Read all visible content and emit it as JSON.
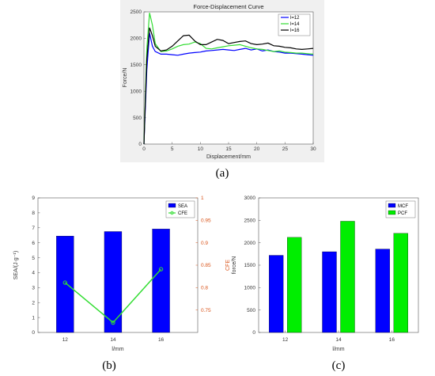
{
  "colors": {
    "blue": "#0000ff",
    "green": "#00ee00",
    "green_line": "#33dd33",
    "black": "#000000",
    "orange_axis": "#d95319",
    "panel_bg": "#f0f0f0",
    "axes_bg": "#ffffff"
  },
  "panel_labels": [
    "(a)",
    "(b)",
    "(c)"
  ],
  "chart_data": [
    {
      "type": "line",
      "title": "Force-Displacement Curve",
      "xlabel": "Displacement/mm",
      "ylabel": "Force/N",
      "xlim": [
        0,
        30
      ],
      "ylim": [
        0,
        2500
      ],
      "xticks": [
        "0",
        "5",
        "10",
        "15",
        "20",
        "25",
        "30"
      ],
      "yticks": [
        "0",
        "500",
        "1000",
        "1500",
        "2000",
        "2500"
      ],
      "legend": "top-right",
      "series": [
        {
          "name": "l=12",
          "x": [
            0,
            0.5,
            1.0,
            1.5,
            2,
            3,
            4,
            5,
            6,
            7,
            8,
            9,
            10,
            11,
            12,
            13,
            14,
            15,
            16,
            17,
            18,
            19,
            20,
            21,
            22,
            23,
            24,
            25,
            26,
            27,
            28,
            29,
            30
          ],
          "y": [
            0,
            1400,
            2100,
            1850,
            1750,
            1700,
            1700,
            1690,
            1680,
            1700,
            1720,
            1730,
            1740,
            1760,
            1770,
            1780,
            1790,
            1780,
            1770,
            1790,
            1810,
            1780,
            1800,
            1760,
            1780,
            1750,
            1740,
            1720,
            1720,
            1710,
            1700,
            1690,
            1680
          ]
        },
        {
          "name": "l=14",
          "x": [
            0,
            0.5,
            1.0,
            1.5,
            2,
            3,
            4,
            5,
            6,
            7,
            8,
            9,
            10,
            11,
            12,
            13,
            14,
            15,
            16,
            17,
            18,
            19,
            20,
            21,
            22,
            23,
            24,
            25,
            26,
            27,
            28,
            29,
            30
          ],
          "y": [
            0,
            1800,
            2480,
            2250,
            1900,
            1750,
            1760,
            1800,
            1850,
            1880,
            1890,
            1930,
            1900,
            1810,
            1800,
            1820,
            1840,
            1860,
            1870,
            1880,
            1850,
            1820,
            1800,
            1790,
            1770,
            1750,
            1760,
            1740,
            1730,
            1720,
            1720,
            1710,
            1700
          ]
        },
        {
          "name": "l=16",
          "x": [
            0,
            0.5,
            1.0,
            1.5,
            2,
            3,
            4,
            5,
            6,
            7,
            8,
            9,
            10,
            11,
            12,
            13,
            14,
            15,
            16,
            17,
            18,
            19,
            20,
            21,
            22,
            23,
            24,
            25,
            26,
            27,
            28,
            29,
            30
          ],
          "y": [
            0,
            1600,
            2200,
            2050,
            1850,
            1760,
            1780,
            1850,
            1950,
            2050,
            2060,
            1950,
            1880,
            1880,
            1930,
            1980,
            1960,
            1900,
            1920,
            1940,
            1950,
            1900,
            1880,
            1890,
            1910,
            1860,
            1850,
            1830,
            1820,
            1800,
            1790,
            1800,
            1810
          ]
        }
      ]
    },
    {
      "type": "bar",
      "xlabel": "l/mm",
      "ylabel": "SEA/(J·g⁻¹)",
      "y2label": "CFE",
      "categories": [
        "12",
        "14",
        "16"
      ],
      "ylim": [
        0,
        9
      ],
      "yticks": [
        "0",
        "1",
        "2",
        "3",
        "4",
        "5",
        "6",
        "7",
        "8",
        "9"
      ],
      "y2lim": [
        0.7,
        1.0
      ],
      "y2ticks": [
        "0.75",
        "0.8",
        "0.85",
        "0.9",
        "0.95",
        "1"
      ],
      "legend": "top-right",
      "series": [
        {
          "name": "SEA",
          "type": "bar",
          "axis": "left",
          "values": [
            6.45,
            6.75,
            6.92
          ]
        },
        {
          "name": "CFE",
          "type": "line",
          "axis": "right",
          "values": [
            0.811,
            0.722,
            0.841
          ]
        }
      ]
    },
    {
      "type": "bar",
      "xlabel": "l/mm",
      "ylabel": "force/N",
      "categories": [
        "12",
        "14",
        "16"
      ],
      "ylim": [
        0,
        3000
      ],
      "yticks": [
        "0",
        "500",
        "1000",
        "1500",
        "2000",
        "2500",
        "3000"
      ],
      "legend": "top-right",
      "series": [
        {
          "name": "MCF",
          "values": [
            1720,
            1800,
            1860
          ]
        },
        {
          "name": "PCF",
          "values": [
            2120,
            2480,
            2210
          ]
        }
      ]
    }
  ]
}
